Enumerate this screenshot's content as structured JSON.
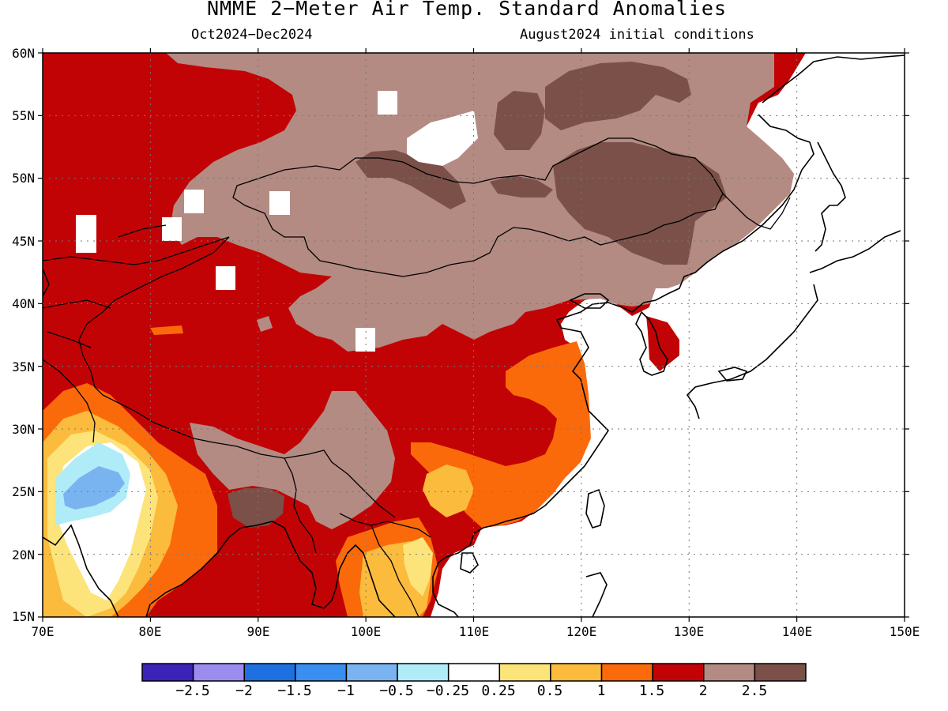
{
  "title": "NMME 2−Meter Air Temp. Standard Anomalies",
  "subtitle_left": "Oct2024−Dec2024",
  "subtitle_right": "August2024 initial conditions",
  "lat_labels": [
    "60N",
    "55N",
    "50N",
    "45N",
    "40N",
    "35N",
    "30N",
    "25N",
    "20N",
    "15N"
  ],
  "lon_labels": [
    "70E",
    "80E",
    "90E",
    "100E",
    "110E",
    "120E",
    "130E",
    "140E",
    "150E"
  ],
  "colorbar": {
    "labels": [
      "−2.5",
      "−2",
      "−1.5",
      "−1",
      "−0.5",
      "−0.25",
      "0.25",
      "0.5",
      "1",
      "1.5",
      "2",
      "2.5"
    ],
    "colors": [
      "#3b22b8",
      "#9b8cf0",
      "#1e6fe0",
      "#3a8ef0",
      "#7ab4f0",
      "#b0ecf8",
      "#ffffff",
      "#fde47a",
      "#fbbb3c",
      "#fb6a0a",
      "#c20306",
      "#b38b82",
      "#7a5048"
    ]
  },
  "map_colors": {
    "ocean": "#ffffff",
    "red": "#c20306",
    "tan": "#b38b82",
    "brown": "#7a5048",
    "orange": "#fb6a0a",
    "lightorange": "#fbbb3c",
    "yellow": "#fde47a",
    "lightblue": "#b0ecf8",
    "blue": "#7ab4f0"
  }
}
